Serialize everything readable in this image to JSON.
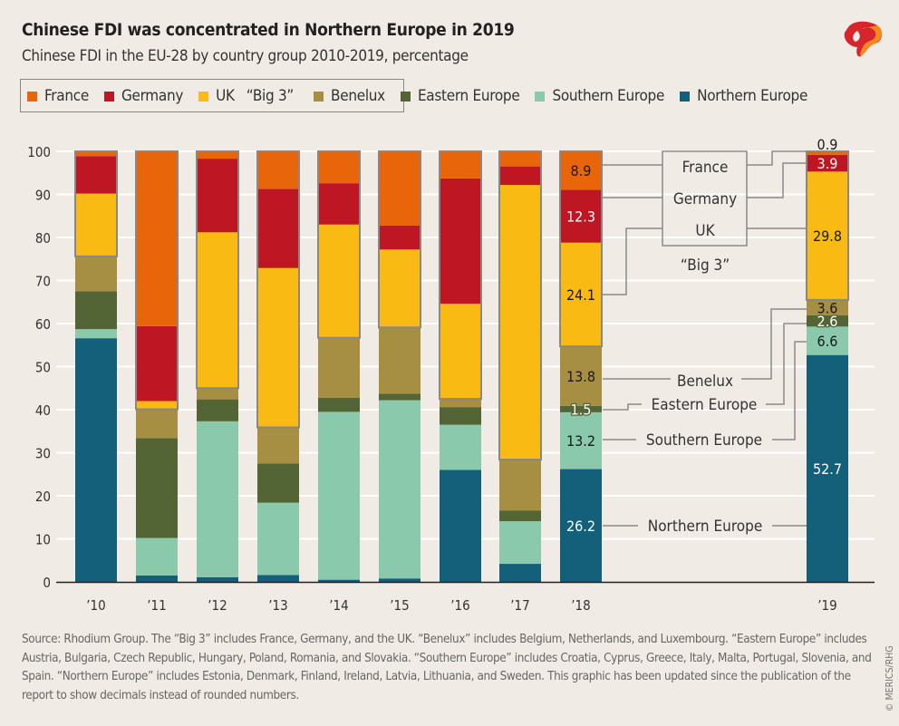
{
  "header": {
    "title": "Chinese FDI was concentrated in Northern Europe in 2019",
    "subtitle": "Chinese FDI in the EU-28 by country group 2010-2019, percentage"
  },
  "legend": {
    "items": [
      {
        "label": "France",
        "color": "#E8650A"
      },
      {
        "label": "Germany",
        "color": "#BE1622"
      },
      {
        "label": "UK",
        "color": "#F9BA13"
      },
      {
        "label": "Benelux",
        "color": "#A68F42"
      },
      {
        "label": "Eastern Europe",
        "color": "#536435"
      },
      {
        "label": "Southern Europe",
        "color": "#8BC9AD"
      },
      {
        "label": "Northern Europe",
        "color": "#14607A"
      }
    ],
    "group_label": "“Big 3”"
  },
  "chart_data": {
    "type": "bar",
    "stacked": true,
    "title": "Chinese FDI was concentrated in Northern Europe in 2019",
    "subtitle": "Chinese FDI in the EU-28 by country group 2010-2019, percentage",
    "categories": [
      "’10",
      "’11",
      "’12",
      "’13",
      "’14",
      "’15",
      "’16",
      "’17",
      "’18",
      "’19"
    ],
    "ylim": [
      0,
      100
    ],
    "yticks": [
      0,
      10,
      20,
      30,
      40,
      50,
      60,
      70,
      80,
      90,
      100
    ],
    "grid": true,
    "legend_position": "top",
    "series": [
      {
        "name": "Northern Europe",
        "color": "#14607A",
        "values": [
          56.6,
          1.5,
          1.1,
          1.6,
          0.5,
          0.8,
          26.0,
          4.2,
          26.2,
          52.7
        ]
      },
      {
        "name": "Southern Europe",
        "color": "#8BC9AD",
        "values": [
          2.1,
          8.7,
          36.2,
          16.8,
          39.0,
          41.4,
          10.5,
          9.9,
          13.2,
          6.6
        ]
      },
      {
        "name": "Eastern Europe",
        "color": "#536435",
        "values": [
          8.8,
          23.2,
          5.1,
          9.1,
          3.3,
          1.5,
          4.1,
          2.5,
          1.5,
          2.6
        ]
      },
      {
        "name": "Benelux",
        "color": "#A68F42",
        "values": [
          8.1,
          6.7,
          2.6,
          8.4,
          13.9,
          15.4,
          1.9,
          11.8,
          13.8,
          3.6
        ]
      },
      {
        "name": "UK",
        "color": "#F9BA13",
        "values": [
          14.6,
          1.9,
          36.2,
          37.0,
          26.3,
          18.1,
          22.1,
          63.8,
          24.1,
          29.8
        ]
      },
      {
        "name": "Germany",
        "color": "#BE1622",
        "values": [
          8.7,
          17.4,
          17.1,
          18.4,
          9.6,
          5.6,
          29.1,
          4.3,
          12.3,
          3.9
        ]
      },
      {
        "name": "France",
        "color": "#E8650A",
        "values": [
          1.1,
          40.6,
          1.7,
          8.7,
          7.4,
          17.2,
          6.3,
          3.5,
          8.9,
          0.9
        ]
      }
    ],
    "data_labels": {
      "’18": [
        "26.2",
        "13.2",
        "1.5",
        "13.8",
        "24.1",
        "12.3",
        "8.9"
      ],
      "’19": [
        "52.7",
        "6.6",
        "2.6",
        "3.6",
        "29.8",
        "3.9",
        "0.9"
      ]
    },
    "annotations": {
      "big3_box": [
        "France",
        "Germany",
        "UK"
      ],
      "big3_label": "“Big 3”",
      "others": [
        "Benelux",
        "Eastern Europe",
        "Southern Europe",
        "Northern Europe"
      ]
    }
  },
  "footer": {
    "source": "Source: Rhodium Group. The “Big 3” includes France, Germany, and the UK. “Benelux” includes Belgium, Netherlands, and Luxembourg. “Eastern Europe” includes Austria, Bulgaria, Czech Republic, Hungary, Poland, Romania, and Slovakia. “Southern Europe” includes Croatia, Cyprus, Greece, Italy, Malta, Portugal, Slovenia, and Spain. “Northern Europe” includes Estonia, Denmark, Finland, Ireland, Latvia, Lithuania, and Sweden. This graphic has been updated since the publication of the report to show decimals instead of rounded numbers.",
    "copyright": "© MERICS/RHG"
  }
}
